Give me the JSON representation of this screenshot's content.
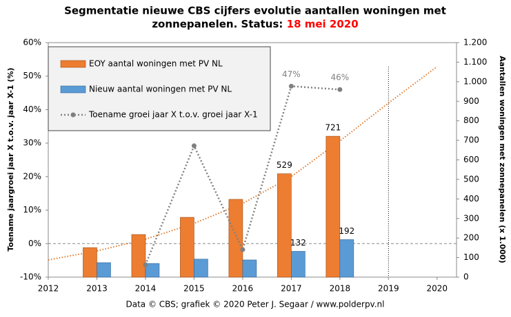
{
  "chart_data": {
    "type": "bar",
    "title": [
      "Segmentatie nieuwe CBS cijfers evolutie aantallen woningen met",
      "zonnepanelen. Status:"
    ],
    "status_date": "18 mei 2020",
    "footer": "Data © CBS; grafiek © 2020 Peter J. Segaar / www.polderpv.nl",
    "ylabel": "Toename jaargroei jaar X t.o.v. jaar X-1 (%)",
    "y2label": "Aantallen woningen met zonnepanelen (x 1.000)",
    "x": [
      2013,
      2014,
      2015,
      2016,
      2017,
      2018
    ],
    "xlim": [
      2012,
      2020.4
    ],
    "xticks": [
      2012,
      2013,
      2014,
      2015,
      2016,
      2017,
      2018,
      2019,
      2020
    ],
    "ylim": [
      -10,
      60
    ],
    "yticks": [
      {
        "value": -10,
        "label": "-10%"
      },
      {
        "value": 0,
        "label": "0%"
      },
      {
        "value": 10,
        "label": "10%"
      },
      {
        "value": 20,
        "label": "20%"
      },
      {
        "value": 30,
        "label": "30%"
      },
      {
        "value": 40,
        "label": "40%"
      },
      {
        "value": 50,
        "label": "50%"
      },
      {
        "value": 60,
        "label": "60%"
      }
    ],
    "y2lim": [
      0,
      1200
    ],
    "y2ticks": [
      0,
      100,
      200,
      300,
      400,
      500,
      600,
      700,
      800,
      900,
      {
        "value": 1000,
        "label": "1.000"
      },
      {
        "value": 1100,
        "label": "1.100"
      },
      {
        "value": 1200,
        "label": "1.200"
      }
    ],
    "series": [
      {
        "name": "EOY aantal woningen met PV NL",
        "color": "#ed7d31",
        "axis": "y2",
        "values": [
          151,
          218,
          306,
          398,
          529,
          721
        ],
        "value_labels": [
          null,
          null,
          null,
          null,
          "529",
          "721"
        ]
      },
      {
        "name": "Nieuw aantal woningen met PV NL",
        "color": "#5b9bd5",
        "axis": "y2",
        "values": [
          74,
          70,
          92,
          88,
          132,
          192
        ],
        "value_labels": [
          null,
          null,
          null,
          null,
          "132",
          "192"
        ]
      },
      {
        "name": "Toename groei jaar X t.o.v. groei jaar X-1",
        "color": "#808080",
        "type": "line",
        "values": [
          null,
          -6.3,
          29.2,
          -1.8,
          47,
          46
        ],
        "value_labels": [
          null,
          null,
          null,
          null,
          "47%",
          "46%"
        ]
      }
    ],
    "trendline": {
      "color": "#e0782a",
      "axis": "y2",
      "x": [
        2012,
        2013,
        2014,
        2015,
        2016,
        2017,
        2018,
        2019,
        2020
      ],
      "values": [
        88,
        134,
        194,
        275,
        377,
        514,
        697,
        891,
        1077
      ]
    },
    "vline_x": 2019,
    "hline_y": 0
  }
}
